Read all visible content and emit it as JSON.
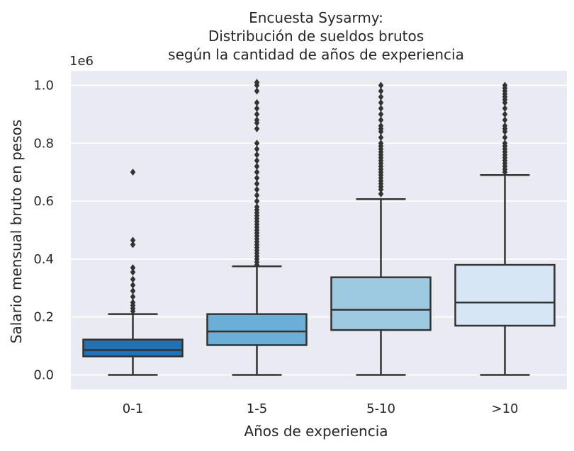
{
  "chart_data": {
    "type": "box",
    "title": [
      "Encuesta Sysarmy:",
      "Distribución de sueldos brutos",
      "según la cantidad de años de experiencia"
    ],
    "xlabel": "Años de experiencia",
    "ylabel": "Salario mensual bruto en pesos",
    "y_scale_label": "1e6",
    "ylim": [
      -0.05,
      1.05
    ],
    "y_ticks": [
      0.0,
      0.2,
      0.4,
      0.6,
      0.8,
      1.0
    ],
    "y_tick_labels": [
      "0.0",
      "0.2",
      "0.4",
      "0.6",
      "0.8",
      "1.0"
    ],
    "grid": true,
    "categories": [
      "0-1",
      "1-5",
      "5-10",
      ">10"
    ],
    "boxes": [
      {
        "category": "0-1",
        "color": "#2171b5",
        "whisker_low": 0.0,
        "q1": 0.064,
        "median": 0.086,
        "q3": 0.122,
        "whisker_high": 0.21,
        "outliers": [
          0.22,
          0.23,
          0.24,
          0.25,
          0.27,
          0.29,
          0.31,
          0.33,
          0.355,
          0.37,
          0.45,
          0.465,
          0.7
        ]
      },
      {
        "category": "1-5",
        "color": "#6baed6",
        "whisker_low": 0.0,
        "q1": 0.103,
        "median": 0.15,
        "q3": 0.21,
        "whisker_high": 0.375,
        "outliers": [
          0.38,
          0.39,
          0.4,
          0.41,
          0.42,
          0.43,
          0.44,
          0.45,
          0.46,
          0.47,
          0.48,
          0.49,
          0.5,
          0.51,
          0.52,
          0.53,
          0.54,
          0.55,
          0.56,
          0.57,
          0.58,
          0.6,
          0.62,
          0.64,
          0.66,
          0.68,
          0.7,
          0.72,
          0.74,
          0.76,
          0.78,
          0.8,
          0.85,
          0.87,
          0.88,
          0.9,
          0.92,
          0.94,
          0.98,
          1.0,
          1.01
        ]
      },
      {
        "category": "5-10",
        "color": "#9ecae1",
        "whisker_low": 0.0,
        "q1": 0.155,
        "median": 0.225,
        "q3": 0.337,
        "whisker_high": 0.607,
        "outliers": [
          0.625,
          0.64,
          0.65,
          0.66,
          0.67,
          0.68,
          0.69,
          0.7,
          0.71,
          0.72,
          0.73,
          0.74,
          0.75,
          0.76,
          0.77,
          0.78,
          0.79,
          0.8,
          0.82,
          0.84,
          0.85,
          0.86,
          0.88,
          0.9,
          0.92,
          0.94,
          0.96,
          0.98,
          1.0
        ]
      },
      {
        "category": ">10",
        "color": "#d6e6f4",
        "whisker_low": 0.0,
        "q1": 0.17,
        "median": 0.25,
        "q3": 0.38,
        "whisker_high": 0.69,
        "outliers": [
          0.7,
          0.71,
          0.72,
          0.73,
          0.74,
          0.75,
          0.76,
          0.77,
          0.78,
          0.79,
          0.8,
          0.82,
          0.84,
          0.85,
          0.86,
          0.88,
          0.9,
          0.92,
          0.94,
          0.95,
          0.96,
          0.97,
          0.98,
          0.99,
          1.0
        ]
      }
    ],
    "colors": {
      "plot_background": "#eaeaf2",
      "grid": "#ffffff",
      "box_edge": "#333333",
      "text": "#262626"
    }
  }
}
